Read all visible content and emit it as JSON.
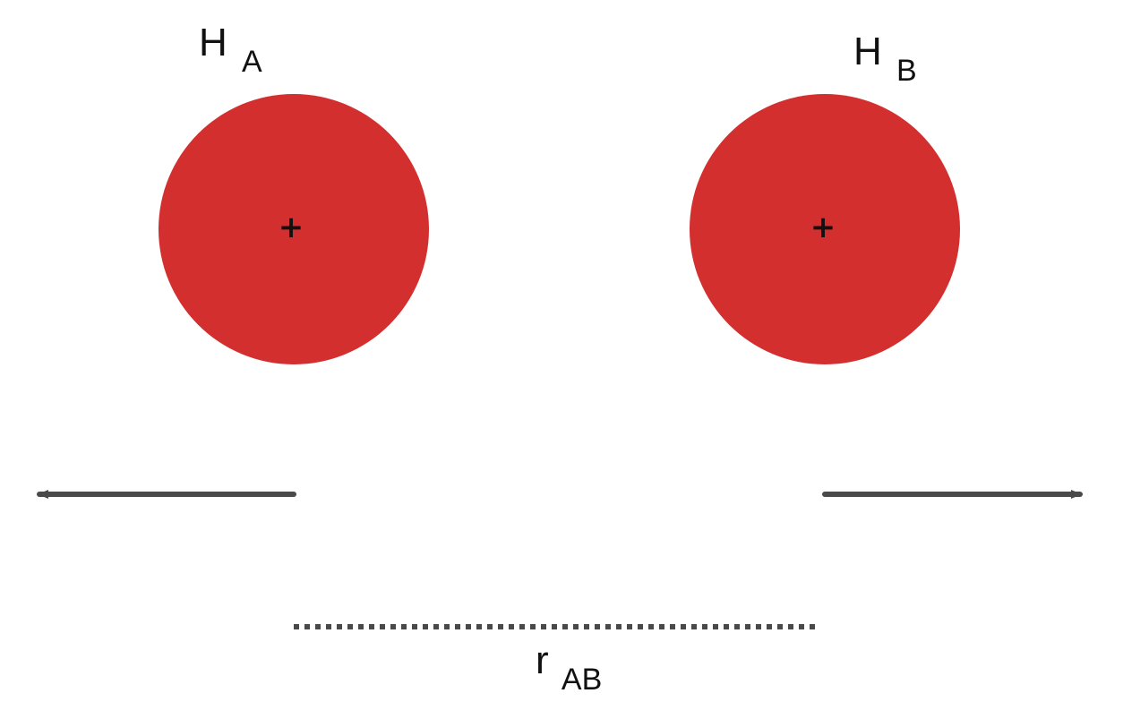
{
  "atoms": [
    {
      "symbol": "H",
      "subscript": "A",
      "charge": "+"
    },
    {
      "symbol": "H",
      "subscript": "B",
      "charge": "+"
    }
  ],
  "distance_label": {
    "symbol": "r",
    "subscript": "AB"
  },
  "arrows": [
    {
      "direction": "left"
    },
    {
      "direction": "right"
    }
  ],
  "colors": {
    "atom_fill": "#D32F2F",
    "arrow": "#4A4A4A",
    "dotted_line": "#4A4A4A",
    "text": "#111111"
  }
}
